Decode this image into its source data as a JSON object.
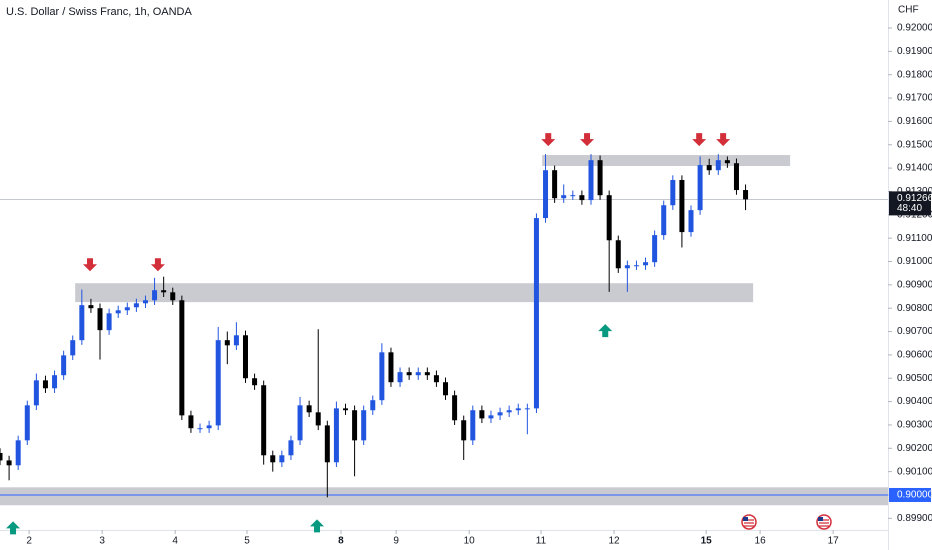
{
  "chart_data": {
    "type": "candlestick",
    "title": "U.S. Dollar / Swiss Franc, 1h, OANDA",
    "y_axis_label": "CHF",
    "up_color": "#2155e0",
    "down_color": "#000000",
    "xlim": [
      0,
      293
    ],
    "ylim": [
      0.8985,
      0.9212
    ],
    "xticks": [
      {
        "value": 9.6,
        "label": "2"
      },
      {
        "value": 33.7,
        "label": "3"
      },
      {
        "value": 57.8,
        "label": "4"
      },
      {
        "value": 81.5,
        "label": "5"
      },
      {
        "value": 112.5,
        "label": "8",
        "bold": true
      },
      {
        "value": 130.7,
        "label": "9"
      },
      {
        "value": 154.8,
        "label": "10"
      },
      {
        "value": 178.5,
        "label": "11"
      },
      {
        "value": 202.6,
        "label": "12"
      },
      {
        "value": 233.0,
        "label": "15",
        "bold": true
      },
      {
        "value": 250.8,
        "label": "16"
      },
      {
        "value": 274.9,
        "label": "17"
      }
    ],
    "yticks": [
      {
        "value": 0.92,
        "label": "0.92000"
      },
      {
        "value": 0.919,
        "label": "0.91900"
      },
      {
        "value": 0.918,
        "label": "0.91800"
      },
      {
        "value": 0.917,
        "label": "0.91700"
      },
      {
        "value": 0.916,
        "label": "0.91600"
      },
      {
        "value": 0.915,
        "label": "0.91500"
      },
      {
        "value": 0.914,
        "label": "0.91400"
      },
      {
        "value": 0.913,
        "label": "0.91300"
      },
      {
        "value": 0.912,
        "label": "0.91200"
      },
      {
        "value": 0.911,
        "label": "0.91100"
      },
      {
        "value": 0.91,
        "label": "0.91000"
      },
      {
        "value": 0.909,
        "label": "0.90900"
      },
      {
        "value": 0.908,
        "label": "0.90800"
      },
      {
        "value": 0.907,
        "label": "0.90700"
      },
      {
        "value": 0.906,
        "label": "0.90600"
      },
      {
        "value": 0.905,
        "label": "0.90500"
      },
      {
        "value": 0.904,
        "label": "0.90400"
      },
      {
        "value": 0.903,
        "label": "0.90300"
      },
      {
        "value": 0.902,
        "label": "0.90200"
      },
      {
        "value": 0.901,
        "label": "0.90100"
      },
      {
        "value": 0.9,
        "label": "0.90000"
      },
      {
        "value": 0.899,
        "label": "0.89900"
      }
    ],
    "x": [
      0,
      3,
      6,
      9,
      12,
      15,
      18,
      21,
      24,
      27,
      30,
      33,
      36,
      39,
      42,
      45,
      48,
      51,
      54,
      57,
      60,
      63,
      66,
      69,
      72,
      75,
      78,
      81,
      84,
      87,
      90,
      93,
      96,
      99,
      102,
      105,
      108,
      111,
      114,
      117,
      120,
      123,
      126,
      129,
      132,
      135,
      138,
      141,
      144,
      147,
      150,
      153,
      156,
      159,
      162,
      165,
      168,
      171,
      174,
      177,
      180,
      183,
      186,
      189,
      192,
      195,
      198,
      201,
      204,
      207,
      210,
      213,
      216,
      219,
      222,
      225,
      228,
      231,
      234,
      237,
      240,
      243,
      246
    ],
    "open": [
      0.9018,
      0.90148,
      0.90127,
      0.90234,
      0.90384,
      0.90491,
      0.90457,
      0.90513,
      0.90598,
      0.90663,
      0.90813,
      0.908,
      0.90706,
      0.90778,
      0.90791,
      0.90804,
      0.90821,
      0.90834,
      0.90877,
      0.90868,
      0.90834,
      0.90341,
      0.90286,
      0.90286,
      0.90298,
      0.90663,
      0.90641,
      0.90684,
      0.905,
      0.9047,
      0.9017,
      0.9014,
      0.9017,
      0.90234,
      0.90384,
      0.90354,
      0.90298,
      0.9014,
      0.90371,
      0.90363,
      0.90234,
      0.90363,
      0.90406,
      0.90611,
      0.90483,
      0.90526,
      0.90513,
      0.90526,
      0.90513,
      0.90483,
      0.90427,
      0.9032,
      0.90234,
      0.90363,
      0.90328,
      0.90341,
      0.90354,
      0.90363,
      0.90371,
      0.90371,
      0.91186,
      0.91391,
      0.91271,
      0.91284,
      0.91284,
      0.91263,
      0.91434,
      0.91284,
      0.91091,
      0.90971,
      0.90984,
      0.90984,
      0.90997,
      0.91113,
      0.91241,
      0.91349,
      0.91126,
      0.9122,
      0.91413,
      0.91391,
      0.91434,
      0.91421,
      0.91306
    ],
    "high": [
      0.902,
      0.90168,
      0.90254,
      0.90404,
      0.9052,
      0.90511,
      0.90533,
      0.90618,
      0.90683,
      0.9088,
      0.9084,
      0.9082,
      0.90798,
      0.90811,
      0.90824,
      0.90841,
      0.90854,
      0.9093,
      0.90935,
      0.90888,
      0.90854,
      0.90361,
      0.90306,
      0.90318,
      0.9072,
      0.907,
      0.9074,
      0.90704,
      0.9052,
      0.9049,
      0.9019,
      0.9019,
      0.90254,
      0.9042,
      0.90404,
      0.9071,
      0.90318,
      0.904,
      0.90391,
      0.90383,
      0.90383,
      0.90426,
      0.9065,
      0.90631,
      0.90546,
      0.90546,
      0.90546,
      0.90546,
      0.90533,
      0.90503,
      0.90447,
      0.9034,
      0.90383,
      0.90383,
      0.90361,
      0.90374,
      0.90383,
      0.90391,
      0.90391,
      0.91206,
      0.9146,
      0.91411,
      0.9133,
      0.91304,
      0.91304,
      0.9146,
      0.91454,
      0.91304,
      0.91111,
      0.91004,
      0.91004,
      0.91017,
      0.91133,
      0.91261,
      0.91369,
      0.91369,
      0.9124,
      0.9145,
      0.9144,
      0.9146,
      0.9145,
      0.91441,
      0.9133
    ],
    "low": [
      0.90128,
      0.90063,
      0.90107,
      0.90214,
      0.90364,
      0.90437,
      0.90437,
      0.90493,
      0.90578,
      0.90643,
      0.9078,
      0.9058,
      0.90686,
      0.90758,
      0.90771,
      0.90784,
      0.90801,
      0.90814,
      0.90848,
      0.90814,
      0.90321,
      0.90266,
      0.90266,
      0.90266,
      0.90278,
      0.9056,
      0.90621,
      0.9048,
      0.9045,
      0.9013,
      0.901,
      0.9012,
      0.9015,
      0.90214,
      0.90334,
      0.90278,
      0.8999,
      0.9012,
      0.90343,
      0.9008,
      0.90214,
      0.90343,
      0.90386,
      0.90463,
      0.90463,
      0.90493,
      0.90493,
      0.90493,
      0.90463,
      0.90407,
      0.903,
      0.9015,
      0.90214,
      0.90308,
      0.90308,
      0.90321,
      0.90334,
      0.90343,
      0.9026,
      0.90351,
      0.91166,
      0.91251,
      0.91251,
      0.91264,
      0.91243,
      0.91243,
      0.91264,
      0.9087,
      0.90951,
      0.9087,
      0.90964,
      0.90964,
      0.90977,
      0.91093,
      0.91221,
      0.9106,
      0.91106,
      0.912,
      0.91371,
      0.91371,
      0.91401,
      0.91286,
      0.9122
    ],
    "close": [
      0.90148,
      0.90127,
      0.90234,
      0.90384,
      0.90491,
      0.90457,
      0.90513,
      0.90598,
      0.90663,
      0.90813,
      0.908,
      0.90706,
      0.90778,
      0.90791,
      0.90804,
      0.90821,
      0.90834,
      0.90877,
      0.90868,
      0.90834,
      0.90341,
      0.90286,
      0.90286,
      0.90298,
      0.90663,
      0.90641,
      0.90684,
      0.905,
      0.9047,
      0.9017,
      0.9014,
      0.9017,
      0.90234,
      0.90384,
      0.90354,
      0.90298,
      0.9014,
      0.90371,
      0.90363,
      0.90234,
      0.90363,
      0.90406,
      0.90611,
      0.90483,
      0.90526,
      0.90513,
      0.90526,
      0.90513,
      0.90483,
      0.90427,
      0.9032,
      0.90234,
      0.90363,
      0.90328,
      0.90341,
      0.90354,
      0.90363,
      0.90371,
      0.90371,
      0.91186,
      0.91391,
      0.91271,
      0.91284,
      0.91284,
      0.91263,
      0.91434,
      0.91284,
      0.91091,
      0.90971,
      0.90984,
      0.90984,
      0.90997,
      0.91113,
      0.91241,
      0.91349,
      0.91126,
      0.9122,
      0.91413,
      0.91391,
      0.91434,
      0.91421,
      0.91306,
      0.91266
    ],
    "zones": [
      {
        "x0": 24.8,
        "x1": 248.5,
        "low": 0.90826,
        "high": 0.90907
      },
      {
        "x0": 178.9,
        "x1": 260.7,
        "low": 0.91409,
        "high": 0.91456
      },
      {
        "x0": 0,
        "x1": 293,
        "low": 0.89956,
        "high": 0.90033
      }
    ],
    "hline": {
      "value": 0.9,
      "label": "0.90000",
      "color": "#2962ff"
    },
    "last_price": {
      "value": 0.91266,
      "label": "0.91266",
      "countdown": "48:40"
    },
    "arrows": [
      {
        "dir": "down",
        "x": 29.7,
        "y": 0.90984,
        "color": "#d32f3a"
      },
      {
        "dir": "down",
        "x": 52.1,
        "y": 0.90984,
        "color": "#d32f3a"
      },
      {
        "dir": "down",
        "x": 180.9,
        "y": 0.9152,
        "color": "#d32f3a"
      },
      {
        "dir": "down",
        "x": 193.7,
        "y": 0.9152,
        "color": "#d32f3a"
      },
      {
        "dir": "down",
        "x": 230.7,
        "y": 0.9152,
        "color": "#d32f3a"
      },
      {
        "dir": "down",
        "x": 238.6,
        "y": 0.9152,
        "color": "#d32f3a"
      },
      {
        "dir": "up",
        "x": 199.7,
        "y": 0.90706,
        "color": "#089981"
      },
      {
        "dir": "up",
        "x": 104.6,
        "y": 0.8987,
        "color": "#089981"
      },
      {
        "dir": "up",
        "x": 4.3,
        "y": 0.89861,
        "color": "#089981"
      }
    ]
  }
}
